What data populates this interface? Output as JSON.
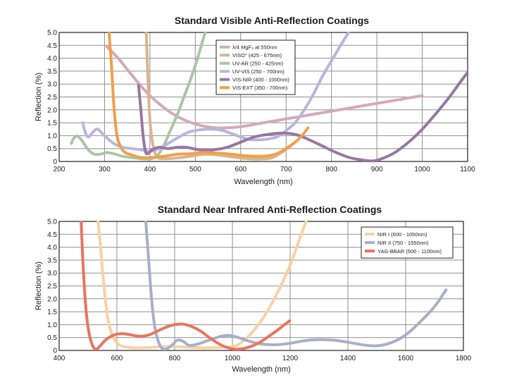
{
  "chart_data": [
    {
      "type": "line",
      "title": "Standard Visible Anti-Reflection Coatings",
      "xlabel": "Wavelength (nm)",
      "ylabel": "Reflection (%)",
      "xlim": [
        200,
        1100
      ],
      "ylim": [
        0,
        5.0
      ],
      "xticks": [
        "200",
        "300",
        "400",
        "500",
        "600",
        "700",
        "800",
        "900",
        "1000",
        "1100"
      ],
      "yticks": [
        "0",
        "0.5",
        "1.0",
        "1.5",
        "2.0",
        "2.5",
        "3.0",
        "3.5",
        "4.0",
        "4.5",
        "5.0"
      ],
      "grid": true,
      "legend_position": "top-center",
      "series": [
        {
          "name": "λ/4 MgF₂ at 550nm",
          "color": "#d4a9b8",
          "points": [
            [
              305,
              4.45
            ],
            [
              330,
              4.0
            ],
            [
              360,
              3.35
            ],
            [
              400,
              2.55
            ],
            [
              450,
              1.85
            ],
            [
              500,
              1.45
            ],
            [
              550,
              1.3
            ],
            [
              600,
              1.35
            ],
            [
              650,
              1.5
            ],
            [
              700,
              1.65
            ],
            [
              750,
              1.8
            ],
            [
              800,
              1.95
            ],
            [
              850,
              2.1
            ],
            [
              900,
              2.25
            ],
            [
              950,
              2.4
            ],
            [
              1000,
              2.55
            ]
          ]
        },
        {
          "name": "VISO° (425 - 675nm)",
          "color": "#d9b48f",
          "points": [
            [
              392,
              5.0
            ],
            [
              396,
              3.0
            ],
            [
              400,
              1.6
            ],
            [
              405,
              0.8
            ],
            [
              412,
              0.3
            ],
            [
              420,
              0.12
            ],
            [
              450,
              0.12
            ],
            [
              490,
              0.2
            ],
            [
              520,
              0.28
            ],
            [
              550,
              0.25
            ],
            [
              580,
              0.18
            ],
            [
              620,
              0.1
            ],
            [
              650,
              0.1
            ],
            [
              670,
              0.15
            ],
            [
              690,
              0.35
            ],
            [
              710,
              0.6
            ]
          ]
        },
        {
          "name": "UV-AR (250 - 425nm)",
          "color": "#a9c7a2",
          "points": [
            [
              227,
              0.7
            ],
            [
              232,
              0.9
            ],
            [
              240,
              0.98
            ],
            [
              250,
              0.82
            ],
            [
              262,
              0.5
            ],
            [
              275,
              0.3
            ],
            [
              290,
              0.28
            ],
            [
              305,
              0.35
            ],
            [
              320,
              0.3
            ],
            [
              340,
              0.2
            ],
            [
              360,
              0.15
            ],
            [
              375,
              0.12
            ],
            [
              390,
              0.1
            ],
            [
              400,
              0.1
            ],
            [
              415,
              0.2
            ],
            [
              430,
              0.6
            ],
            [
              445,
              1.2
            ],
            [
              460,
              1.8
            ],
            [
              475,
              2.5
            ],
            [
              490,
              3.2
            ],
            [
              505,
              4.0
            ],
            [
              515,
              4.6
            ],
            [
              522,
              5.0
            ]
          ]
        },
        {
          "name": "UV-VIS (250 - 700nm)",
          "color": "#b8b5dd",
          "points": [
            [
              252,
              1.5
            ],
            [
              258,
              1.1
            ],
            [
              265,
              0.95
            ],
            [
              275,
              1.15
            ],
            [
              285,
              1.25
            ],
            [
              300,
              1.0
            ],
            [
              320,
              0.7
            ],
            [
              340,
              0.55
            ],
            [
              360,
              0.5
            ],
            [
              380,
              0.45
            ],
            [
              400,
              0.4
            ],
            [
              420,
              0.5
            ],
            [
              450,
              0.8
            ],
            [
              480,
              1.1
            ],
            [
              500,
              1.2
            ],
            [
              530,
              1.25
            ],
            [
              560,
              1.2
            ],
            [
              600,
              0.95
            ],
            [
              620,
              0.85
            ],
            [
              650,
              0.85
            ],
            [
              680,
              0.95
            ],
            [
              700,
              1.2
            ],
            [
              720,
              1.5
            ],
            [
              740,
              2.0
            ],
            [
              760,
              2.6
            ],
            [
              780,
              3.3
            ],
            [
              800,
              3.9
            ],
            [
              820,
              4.5
            ],
            [
              838,
              5.0
            ]
          ]
        },
        {
          "name": "VIS-NIR (400 - 1000nm)",
          "color": "#9a76a3",
          "points": [
            [
              375,
              2.95
            ],
            [
              380,
              2.0
            ],
            [
              385,
              1.0
            ],
            [
              390,
              0.4
            ],
            [
              395,
              0.3
            ],
            [
              405,
              0.45
            ],
            [
              420,
              0.55
            ],
            [
              440,
              0.5
            ],
            [
              460,
              0.55
            ],
            [
              480,
              0.55
            ],
            [
              510,
              0.45
            ],
            [
              540,
              0.45
            ],
            [
              570,
              0.55
            ],
            [
              600,
              0.75
            ],
            [
              630,
              0.95
            ],
            [
              660,
              1.05
            ],
            [
              690,
              1.1
            ],
            [
              720,
              1.05
            ],
            [
              750,
              0.85
            ],
            [
              780,
              0.6
            ],
            [
              810,
              0.35
            ],
            [
              840,
              0.15
            ],
            [
              870,
              0.05
            ],
            [
              890,
              0.02
            ],
            [
              910,
              0.1
            ],
            [
              940,
              0.35
            ],
            [
              970,
              0.75
            ],
            [
              1000,
              1.25
            ],
            [
              1030,
              1.85
            ],
            [
              1060,
              2.5
            ],
            [
              1085,
              3.1
            ],
            [
              1100,
              3.45
            ]
          ]
        },
        {
          "name": "VIS-EXT (350 - 700nm)",
          "color": "#f0a04a",
          "points": [
            [
              310,
              5.0
            ],
            [
              315,
              3.8
            ],
            [
              320,
              2.3
            ],
            [
              325,
              1.3
            ],
            [
              330,
              0.8
            ],
            [
              338,
              0.5
            ],
            [
              345,
              0.35
            ],
            [
              360,
              0.25
            ],
            [
              380,
              0.15
            ],
            [
              400,
              0.15
            ],
            [
              430,
              0.2
            ],
            [
              460,
              0.28
            ],
            [
              490,
              0.3
            ],
            [
              520,
              0.35
            ],
            [
              550,
              0.32
            ],
            [
              580,
              0.28
            ],
            [
              610,
              0.22
            ],
            [
              640,
              0.2
            ],
            [
              660,
              0.22
            ],
            [
              680,
              0.3
            ],
            [
              700,
              0.5
            ],
            [
              720,
              0.75
            ],
            [
              735,
              1.0
            ],
            [
              748,
              1.3
            ]
          ]
        }
      ]
    },
    {
      "type": "line",
      "title": "Standard Near Infrared Anti-Reflection Coatings",
      "xlabel": "Wavelength (nm)",
      "ylabel": "Reflection (%)",
      "xlim": [
        400,
        1800
      ],
      "ylim": [
        0,
        5.0
      ],
      "xticks": [
        "400",
        "600",
        "800",
        "1000",
        "1200",
        "1400",
        "1600",
        "1800"
      ],
      "yticks": [
        "0",
        "0.5",
        "1.0",
        "1.5",
        "2.0",
        "2.5",
        "3.0",
        "3.5",
        "4.0",
        "4.5",
        "5.0"
      ],
      "grid": true,
      "legend_position": "top-right",
      "series": [
        {
          "name": "NIR I (600 - 1050nm)",
          "color": "#f8d2a4",
          "points": [
            [
              535,
              5.0
            ],
            [
              545,
              3.8
            ],
            [
              555,
              2.5
            ],
            [
              565,
              1.5
            ],
            [
              575,
              0.9
            ],
            [
              590,
              0.45
            ],
            [
              610,
              0.2
            ],
            [
              640,
              0.12
            ],
            [
              680,
              0.1
            ],
            [
              720,
              0.12
            ],
            [
              760,
              0.15
            ],
            [
              800,
              0.15
            ],
            [
              850,
              0.12
            ],
            [
              900,
              0.1
            ],
            [
              950,
              0.12
            ],
            [
              1000,
              0.15
            ],
            [
              1030,
              0.3
            ],
            [
              1060,
              0.6
            ],
            [
              1090,
              1.0
            ],
            [
              1120,
              1.5
            ],
            [
              1150,
              2.1
            ],
            [
              1180,
              2.8
            ],
            [
              1210,
              3.6
            ],
            [
              1235,
              4.4
            ],
            [
              1255,
              5.0
            ]
          ]
        },
        {
          "name": "NIR II (750 - 1550nm)",
          "color": "#a9aec9",
          "points": [
            [
              700,
              5.0
            ],
            [
              710,
              3.5
            ],
            [
              720,
              2.0
            ],
            [
              730,
              1.0
            ],
            [
              742,
              0.4
            ],
            [
              755,
              0.1
            ],
            [
              770,
              0.05
            ],
            [
              790,
              0.2
            ],
            [
              810,
              0.4
            ],
            [
              830,
              0.35
            ],
            [
              850,
              0.2
            ],
            [
              880,
              0.25
            ],
            [
              920,
              0.4
            ],
            [
              960,
              0.55
            ],
            [
              990,
              0.58
            ],
            [
              1020,
              0.5
            ],
            [
              1060,
              0.35
            ],
            [
              1100,
              0.25
            ],
            [
              1150,
              0.22
            ],
            [
              1200,
              0.28
            ],
            [
              1250,
              0.38
            ],
            [
              1300,
              0.42
            ],
            [
              1350,
              0.4
            ],
            [
              1400,
              0.32
            ],
            [
              1450,
              0.22
            ],
            [
              1500,
              0.18
            ],
            [
              1550,
              0.3
            ],
            [
              1600,
              0.6
            ],
            [
              1650,
              1.1
            ],
            [
              1700,
              1.7
            ],
            [
              1740,
              2.35
            ]
          ]
        },
        {
          "name": "YAG-BBAR (500 - 1100nm)",
          "color": "#e87560",
          "points": [
            [
              476,
              5.0
            ],
            [
              482,
              3.5
            ],
            [
              490,
              2.0
            ],
            [
              500,
              0.9
            ],
            [
              512,
              0.3
            ],
            [
              525,
              0.05
            ],
            [
              540,
              0.15
            ],
            [
              560,
              0.4
            ],
            [
              590,
              0.6
            ],
            [
              620,
              0.65
            ],
            [
              650,
              0.6
            ],
            [
              680,
              0.55
            ],
            [
              710,
              0.6
            ],
            [
              740,
              0.75
            ],
            [
              770,
              0.9
            ],
            [
              800,
              1.0
            ],
            [
              830,
              1.02
            ],
            [
              860,
              0.92
            ],
            [
              890,
              0.75
            ],
            [
              920,
              0.5
            ],
            [
              950,
              0.28
            ],
            [
              980,
              0.12
            ],
            [
              1010,
              0.05
            ],
            [
              1040,
              0.08
            ],
            [
              1070,
              0.18
            ],
            [
              1100,
              0.35
            ],
            [
              1130,
              0.58
            ],
            [
              1160,
              0.82
            ],
            [
              1198,
              1.15
            ]
          ]
        }
      ]
    }
  ]
}
